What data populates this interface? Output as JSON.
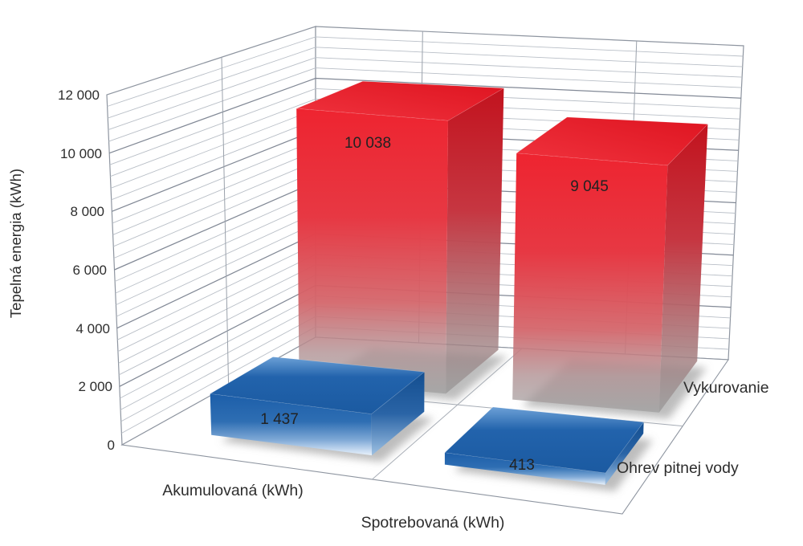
{
  "chart_data": {
    "type": "bar",
    "projection": "3d",
    "title": "",
    "ylabel": "Tepelná energia (kWh)",
    "ylim": [
      0,
      12000
    ],
    "yticks": {
      "major_unit": 2000,
      "minor_unit": 400,
      "labels": [
        "0",
        "2 000",
        "4 000",
        "6 000",
        "8 000",
        "10 000",
        "12 000"
      ]
    },
    "categories": [
      "Akumulovaná (kWh)",
      "Spotrebovaná (kWh)"
    ],
    "series": [
      {
        "name": "Vykurovanie",
        "color": "#e8232e",
        "values": [
          10038,
          9045
        ],
        "labels": [
          "10 038",
          "9 045"
        ]
      },
      {
        "name": "Ohrev pitnej vody",
        "color": "#1d5fa8",
        "values": [
          1437,
          413
        ],
        "labels": [
          "1 437",
          "413"
        ]
      }
    ],
    "grid": true,
    "legend_position": "right-of-floor",
    "colors": {
      "grid_minor": "#b9bfc7",
      "grid_major": "#828996",
      "wall_edge": "#8e95a0",
      "text": "#2d2d2d"
    }
  }
}
